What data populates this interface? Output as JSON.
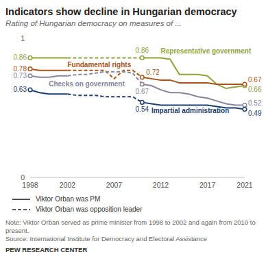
{
  "chart_data": {
    "type": "line",
    "title": "Indicators show decline in Hungarian democracy",
    "subtitle": "Rating of Hungarian democracy on measures of ...",
    "x": [
      1998,
      1999,
      2000,
      2001,
      2002,
      2003,
      2004,
      2005,
      2006,
      2007,
      2008,
      2009,
      2010,
      2011,
      2012,
      2013,
      2014,
      2015,
      2016,
      2017,
      2018,
      2019,
      2020,
      2021
    ],
    "xlim": [
      1998,
      2021
    ],
    "xticks": [
      1998,
      2002,
      2007,
      2012,
      2017,
      2021
    ],
    "ylim": [
      0,
      1
    ],
    "yticks": [
      0,
      1
    ],
    "grid": false,
    "legend": "bottom",
    "series": [
      {
        "name": "Representative government",
        "color": "#8fa33c",
        "marker": "circle",
        "labeled_x": [
          1998,
          2010,
          2021
        ],
        "values": [
          0.86,
          0.86,
          0.86,
          0.86,
          0.86,
          0.86,
          0.86,
          0.86,
          0.86,
          0.86,
          0.86,
          0.86,
          0.86,
          0.86,
          0.86,
          0.85,
          0.74,
          0.74,
          0.74,
          0.73,
          0.67,
          0.64,
          0.65,
          0.66
        ]
      },
      {
        "name": "Fundamental rights",
        "color": "#a8541a",
        "marker": "circle",
        "labeled_x": [
          1998,
          2010,
          2021
        ],
        "values": [
          0.78,
          0.77,
          0.77,
          0.77,
          0.77,
          0.77,
          0.77,
          0.77,
          0.77,
          0.71,
          0.77,
          0.77,
          0.72,
          0.71,
          0.7,
          0.7,
          0.68,
          0.68,
          0.68,
          0.68,
          0.67,
          0.67,
          0.67,
          0.67
        ]
      },
      {
        "name": "Checks on government",
        "color": "#86869a",
        "marker": "circle",
        "labeled_x": [
          1998,
          2010,
          2021
        ],
        "values": [
          0.73,
          0.72,
          0.72,
          0.73,
          0.73,
          0.74,
          0.74,
          0.75,
          0.76,
          0.76,
          0.76,
          0.75,
          0.67,
          0.66,
          0.63,
          0.61,
          0.61,
          0.6,
          0.58,
          0.57,
          0.55,
          0.53,
          0.52,
          0.52
        ]
      },
      {
        "name": "Impartial administration",
        "color": "#1c3f6e",
        "marker": "circle",
        "labeled_x": [
          1998,
          2010,
          2021
        ],
        "values": [
          0.63,
          0.61,
          0.6,
          0.6,
          0.6,
          0.59,
          0.59,
          0.59,
          0.58,
          0.58,
          0.58,
          0.58,
          0.54,
          0.53,
          0.52,
          0.52,
          0.52,
          0.52,
          0.52,
          0.52,
          0.51,
          0.5,
          0.5,
          0.49
        ]
      }
    ],
    "periods": [
      {
        "name": "Viktor Orban was PM",
        "line_style": "solid",
        "ranges": [
          [
            1998,
            2002
          ],
          [
            2010,
            2021
          ]
        ]
      },
      {
        "name": "Viktor Orban was opposition leader",
        "line_style": "dashed",
        "ranges": [
          [
            2002,
            2010
          ]
        ]
      }
    ],
    "note": "Note: Viktor Orban served as prime minister from 1998 to 2002 and again from 2010 to present.",
    "source": "Source: International Institute for Democracy and Electoral Assistance",
    "credit": "PEW RESEARCH CENTER"
  }
}
